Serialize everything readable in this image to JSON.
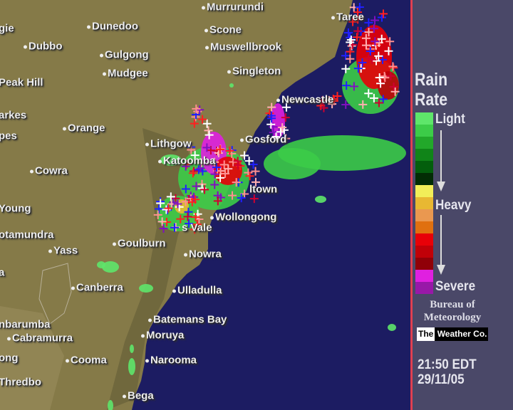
{
  "legend": {
    "title_line1": "Rain",
    "title_line2": "Rate",
    "label_light": "Light",
    "label_heavy": "Heavy",
    "label_severe": "Severe",
    "colors": [
      "#5ee66a",
      "#3ccc48",
      "#22a82a",
      "#108418",
      "#035e0c",
      "#022c04",
      "#f2ee58",
      "#e8b832",
      "#ea9850",
      "#e07010",
      "#e80008",
      "#c00008",
      "#900008",
      "#e020e0",
      "#9818a8"
    ]
  },
  "credits": {
    "bureau_line1": "Bureau of",
    "bureau_line2": "Meteorology",
    "logo_the": "The",
    "logo_rest": "Weather Co."
  },
  "timestamp": {
    "time": "21:50 EDT",
    "date": "29/11/05"
  },
  "map": {
    "land_color": "#857a48",
    "sea_color": "#1c1c62",
    "towns": [
      {
        "name": "Murrurundi"
      },
      {
        "name": "Dunedoo"
      },
      {
        "name": "Scone"
      },
      {
        "name": "gie"
      },
      {
        "name": "Dubbo"
      },
      {
        "name": "Gulgong"
      },
      {
        "name": "Muswellbrook"
      },
      {
        "name": "Mudgee"
      },
      {
        "name": "Singleton"
      },
      {
        "name": "Peak Hill"
      },
      {
        "name": "Newcastle"
      },
      {
        "name": "arkes"
      },
      {
        "name": "Orange"
      },
      {
        "name": "pes"
      },
      {
        "name": "Lithgow"
      },
      {
        "name": "Gosford"
      },
      {
        "name": "Katoomba"
      },
      {
        "name": "Cowra"
      },
      {
        "name": "ltown"
      },
      {
        "name": "Young"
      },
      {
        "name": "Wollongong"
      },
      {
        "name": "s Vale"
      },
      {
        "name": "otamundra"
      },
      {
        "name": "Yass"
      },
      {
        "name": "Goulburn"
      },
      {
        "name": "Nowra"
      },
      {
        "name": "a"
      },
      {
        "name": "Canberra"
      },
      {
        "name": "Ulladulla"
      },
      {
        "name": "Batemans Bay"
      },
      {
        "name": "nbarumba"
      },
      {
        "name": "Cabramurra"
      },
      {
        "name": "Moruya"
      },
      {
        "name": "ong"
      },
      {
        "name": "Cooma"
      },
      {
        "name": "Narooma"
      },
      {
        "name": "Thredbo"
      },
      {
        "name": "Bega"
      },
      {
        "name": "Taree"
      }
    ]
  }
}
